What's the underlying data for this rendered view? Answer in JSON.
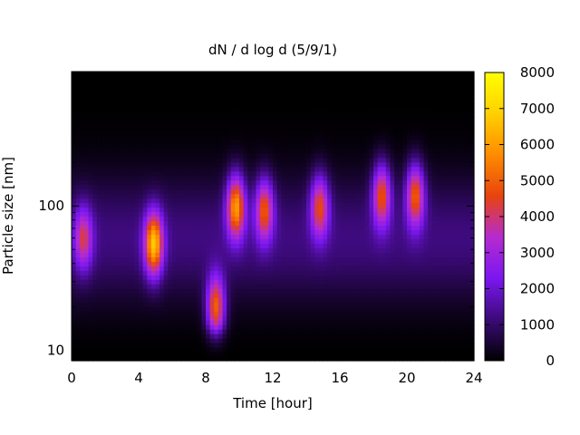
{
  "chart_data": {
    "type": "heatmap",
    "title": "dN / d log d (5/9/1)",
    "xlabel": "Time [hour]",
    "ylabel": "Particle size [nm]",
    "xlim": [
      0,
      24
    ],
    "x_ticks": [
      0,
      4,
      8,
      12,
      16,
      20,
      24
    ],
    "x_tick_labels": [
      "0",
      "4",
      "8",
      "12",
      "16",
      "20",
      "24"
    ],
    "y_scale": "log",
    "ylim": [
      8.5,
      850
    ],
    "y_ticks": [
      10,
      100
    ],
    "y_tick_labels": [
      "10",
      "100"
    ],
    "colorbar": {
      "range": [
        0,
        8000
      ],
      "ticks": [
        0,
        1000,
        2000,
        3000,
        4000,
        5000,
        6000,
        7000,
        8000
      ],
      "tick_labels": [
        "0",
        "1000",
        "2000",
        "3000",
        "4000",
        "5000",
        "6000",
        "7000",
        "8000"
      ],
      "colormap": [
        "#000000",
        "#3b0a78",
        "#7b17f0",
        "#b52bd0",
        "#e8430e",
        "#ff8c00",
        "#ffd000",
        "#ffff00"
      ]
    },
    "background_level": 1200,
    "features": [
      {
        "time_h": 0.7,
        "size_nm": 60,
        "peak": 3800
      },
      {
        "time_h": 4.9,
        "size_nm": 55,
        "peak": 6300
      },
      {
        "time_h": 8.6,
        "size_nm": 20,
        "peak": 5400
      },
      {
        "time_h": 9.8,
        "size_nm": 100,
        "peak": 5800
      },
      {
        "time_h": 11.5,
        "size_nm": 95,
        "peak": 4700
      },
      {
        "time_h": 14.8,
        "size_nm": 100,
        "peak": 4500
      },
      {
        "time_h": 18.5,
        "size_nm": 120,
        "peak": 4800
      },
      {
        "time_h": 20.5,
        "size_nm": 120,
        "peak": 5000
      }
    ]
  }
}
